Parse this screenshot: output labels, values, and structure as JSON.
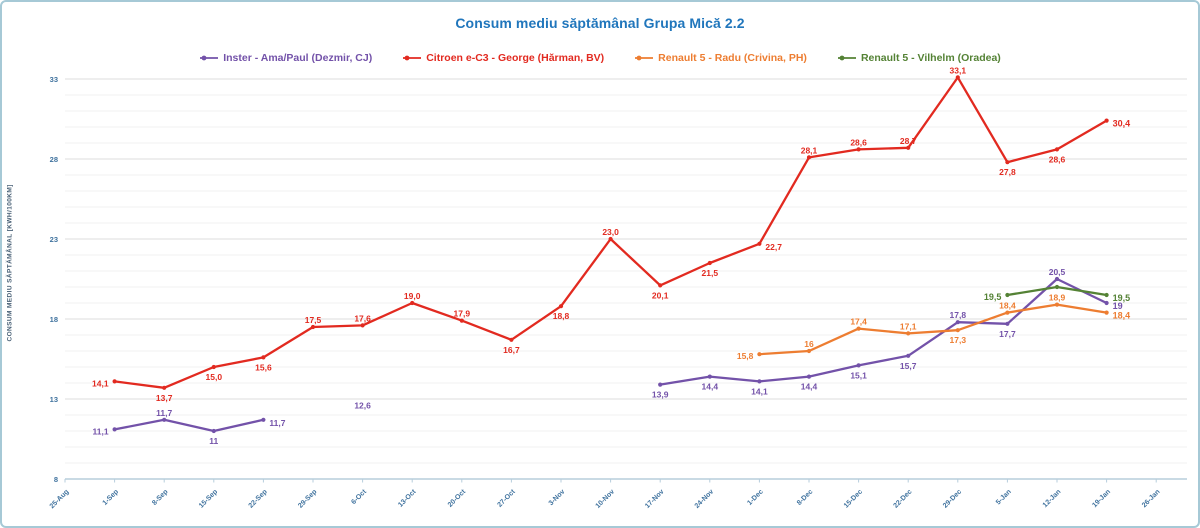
{
  "colors": {
    "title": "#2076BC",
    "axis_labels": "#3F729E",
    "y_axis_title": "#475F75",
    "axis_line": "#B7CEDC",
    "grid_major": "#DCDCDC",
    "grid_minor": "#F2F2F2",
    "frame_border": "#A6C9D6",
    "series_purple": "#7352A9",
    "series_red": "#E22A20",
    "series_orange": "#ED7D31",
    "series_green": "#548235"
  },
  "chart_data": {
    "type": "line",
    "title": "Consum mediu săptămânal Grupa Mică 2.2",
    "ylabel": "CONSUM MEDIU SĂPTĂMÂNAL [KWH/100KM]",
    "xlabel": "",
    "ylim": [
      8,
      33
    ],
    "y_major_ticks": [
      8,
      13,
      18,
      23,
      28,
      33
    ],
    "y_minor_step": 1,
    "grid": true,
    "legend_position": "top",
    "categories": [
      "25-Aug",
      "1-Sep",
      "8-Sep",
      "15-Sep",
      "22-Sep",
      "29-Sep",
      "6-Oct",
      "13-Oct",
      "20-Oct",
      "27-Oct",
      "3-Nov",
      "10-Nov",
      "17-Nov",
      "24-Nov",
      "1-Dec",
      "8-Dec",
      "15-Dec",
      "22-Dec",
      "29-Dec",
      "5-Jan",
      "12-Jan",
      "19-Jan",
      "26-Jan"
    ],
    "series": [
      {
        "name": "Inster - Ama/Paul (Dezmir, CJ)",
        "color": "#7352A9",
        "legend_bold": false,
        "points": [
          {
            "i": 1,
            "v": 11.1,
            "label": "11,1",
            "pos": "left"
          },
          {
            "i": 2,
            "v": 11.7,
            "label": "11,7",
            "pos": "above"
          },
          {
            "i": 3,
            "v": 11.0,
            "label": "11",
            "pos": "below"
          },
          {
            "i": 4,
            "v": 11.7,
            "label": "11,7",
            "pos": "right"
          },
          {
            "i": 6,
            "v": 12.6,
            "label": "12,6",
            "pos": "center",
            "marker": false
          },
          {
            "i": 12,
            "v": 13.9,
            "label": "13,9",
            "pos": "below"
          },
          {
            "i": 13,
            "v": 14.4,
            "label": "14,4",
            "pos": "below"
          },
          {
            "i": 14,
            "v": 14.1,
            "label": "14,1",
            "pos": "below"
          },
          {
            "i": 15,
            "v": 14.4,
            "label": "14,4",
            "pos": "below"
          },
          {
            "i": 16,
            "v": 15.1,
            "label": "15,1",
            "pos": "below"
          },
          {
            "i": 17,
            "v": 15.7,
            "label": "15,7",
            "pos": "below"
          },
          {
            "i": 18,
            "v": 17.8,
            "label": "17,8",
            "pos": "above"
          },
          {
            "i": 19,
            "v": 17.7,
            "label": "17,7",
            "pos": "below"
          },
          {
            "i": 20,
            "v": 20.5,
            "label": "20,5",
            "pos": "above"
          },
          {
            "i": 21,
            "v": 19.0,
            "label": "19",
            "pos": "right",
            "bold": true
          }
        ]
      },
      {
        "name": "Citroen e-C3 - George (Hărman, BV)",
        "color": "#E22A20",
        "legend_bold": false,
        "points": [
          {
            "i": 1,
            "v": 14.1,
            "label": "14,1",
            "pos": "left"
          },
          {
            "i": 2,
            "v": 13.7,
            "label": "13,7",
            "pos": "below"
          },
          {
            "i": 3,
            "v": 15.0,
            "label": "15,0",
            "pos": "below"
          },
          {
            "i": 4,
            "v": 15.6,
            "label": "15,6",
            "pos": "below"
          },
          {
            "i": 5,
            "v": 17.5,
            "label": "17,5",
            "pos": "above"
          },
          {
            "i": 6,
            "v": 17.6,
            "label": "17,6",
            "pos": "above"
          },
          {
            "i": 7,
            "v": 19.0,
            "label": "19,0",
            "pos": "above"
          },
          {
            "i": 8,
            "v": 17.9,
            "label": "17,9",
            "pos": "above"
          },
          {
            "i": 9,
            "v": 16.7,
            "label": "16,7",
            "pos": "below"
          },
          {
            "i": 10,
            "v": 18.8,
            "label": "18,8",
            "pos": "below"
          },
          {
            "i": 11,
            "v": 23.0,
            "label": "23,0",
            "pos": "above"
          },
          {
            "i": 12,
            "v": 20.1,
            "label": "20,1",
            "pos": "below"
          },
          {
            "i": 13,
            "v": 21.5,
            "label": "21,5",
            "pos": "below"
          },
          {
            "i": 14,
            "v": 22.7,
            "label": "22,7",
            "pos": "right"
          },
          {
            "i": 15,
            "v": 28.1,
            "label": "28,1",
            "pos": "above"
          },
          {
            "i": 16,
            "v": 28.6,
            "label": "28,6",
            "pos": "above"
          },
          {
            "i": 17,
            "v": 28.7,
            "label": "28,7",
            "pos": "above"
          },
          {
            "i": 18,
            "v": 33.1,
            "label": "33,1",
            "pos": "above"
          },
          {
            "i": 19,
            "v": 27.8,
            "label": "27,8",
            "pos": "below"
          },
          {
            "i": 20,
            "v": 28.6,
            "label": "28,6",
            "pos": "below"
          },
          {
            "i": 21,
            "v": 30.4,
            "label": "30,4",
            "pos": "right",
            "bold": true
          }
        ]
      },
      {
        "name": "Renault 5 - Radu (Crivina, PH)",
        "color": "#ED7D31",
        "legend_bold": false,
        "points": [
          {
            "i": 14,
            "v": 15.8,
            "label": "15,8",
            "pos": "left"
          },
          {
            "i": 15,
            "v": 16.0,
            "label": "16",
            "pos": "above"
          },
          {
            "i": 16,
            "v": 17.4,
            "label": "17,4",
            "pos": "above"
          },
          {
            "i": 17,
            "v": 17.1,
            "label": "17,1",
            "pos": "above"
          },
          {
            "i": 18,
            "v": 17.3,
            "label": "17,3",
            "pos": "below"
          },
          {
            "i": 19,
            "v": 18.4,
            "label": "18,4",
            "pos": "above"
          },
          {
            "i": 20,
            "v": 18.9,
            "label": "18,9",
            "pos": "above"
          },
          {
            "i": 21,
            "v": 18.4,
            "label": "18,4",
            "pos": "right",
            "bold": true
          }
        ]
      },
      {
        "name": "Renault 5 - Vilhelm (Oradea)",
        "color": "#548235",
        "legend_bold": true,
        "points": [
          {
            "i": 19,
            "v": 19.5,
            "label": "19,5",
            "pos": "left",
            "bold": true
          },
          {
            "i": 20,
            "v": 20.0,
            "label": null
          },
          {
            "i": 21,
            "v": 19.5,
            "label": "19,5",
            "pos": "right",
            "bold": true
          }
        ]
      }
    ]
  }
}
